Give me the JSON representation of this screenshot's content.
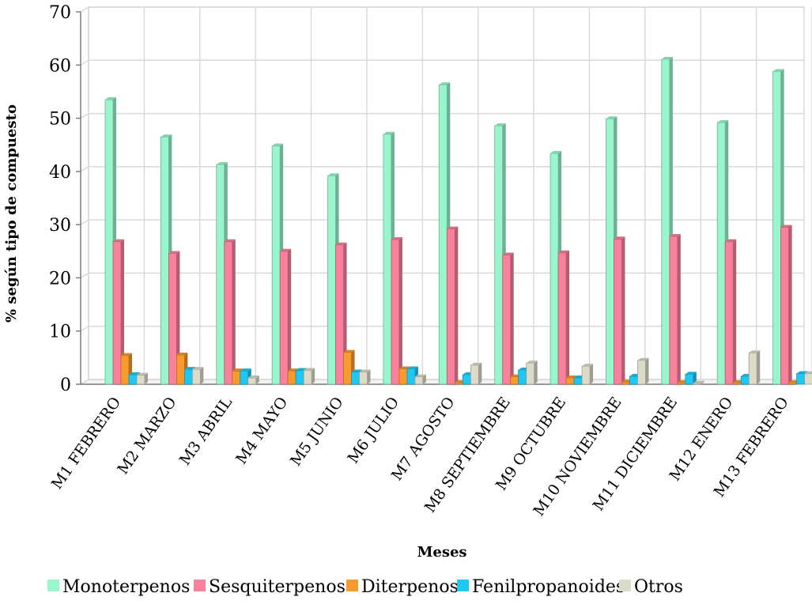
{
  "chart_data": {
    "type": "bar",
    "xlabel": "Meses",
    "ylabel": "% según tipo de compuesto",
    "ylim": [
      0,
      70
    ],
    "yticks": [
      0,
      10,
      20,
      30,
      40,
      50,
      60,
      70
    ],
    "grid": true,
    "legend_position": "bottom",
    "categories": [
      "M1 FEBRERO",
      "M2 MARZO",
      "M3 ABRIL",
      "M4 MAYO",
      "M5 JUNIO",
      "M6 JULIO",
      "M7 AGOSTO",
      "M8 SEPTIEMBRE",
      "M9 OCTUBRE",
      "M10 NOVIEMBRE",
      "M11 DICIEMBRE",
      "M12 ENERO",
      "M13 FEBRERO"
    ],
    "series": [
      {
        "name": "Monoterpenos",
        "color": "#99f5cc",
        "values": [
          53.5,
          46.5,
          41.3,
          44.8,
          39.2,
          47.0,
          56.3,
          48.6,
          43.4,
          49.9,
          61.1,
          49.2,
          58.8
        ]
      },
      {
        "name": "Sesquiterpenos",
        "color": "#f9819c",
        "values": [
          26.8,
          24.6,
          26.8,
          25.0,
          26.2,
          27.2,
          29.2,
          24.3,
          24.7,
          27.3,
          27.8,
          26.8,
          29.5
        ]
      },
      {
        "name": "Diterpenos",
        "color": "#f99a2e",
        "values": [
          5.4,
          5.5,
          2.5,
          2.5,
          6.0,
          2.9,
          0.3,
          1.4,
          1.2,
          0.4,
          0.3,
          0.3,
          0.3
        ]
      },
      {
        "name": "Fenilpropanoides",
        "color": "#1ec8f2",
        "values": [
          1.8,
          2.8,
          2.5,
          2.6,
          2.3,
          2.9,
          1.8,
          2.7,
          1.2,
          1.5,
          1.9,
          1.5,
          2.0
        ]
      },
      {
        "name": "Otros",
        "color": "#dcdac8",
        "values": [
          1.7,
          2.8,
          1.2,
          2.6,
          2.3,
          1.4,
          3.6,
          4.0,
          3.4,
          4.5,
          0.2,
          5.9,
          2.0
        ]
      }
    ]
  }
}
